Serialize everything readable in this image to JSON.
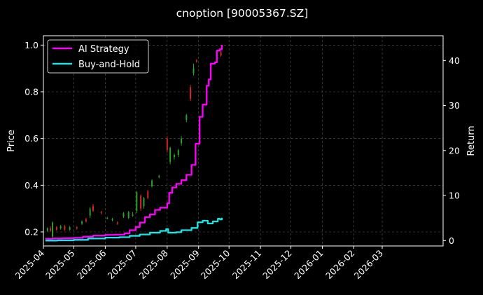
{
  "chart_data": {
    "type": "line",
    "title": "cnoption [90005367.SZ]",
    "left_axis": {
      "label": "Price",
      "range": [
        0.14,
        1.04
      ],
      "ticks": [
        "0.2",
        "0.4",
        "0.6",
        "0.8",
        "1.0"
      ]
    },
    "right_axis": {
      "label": "Return",
      "range": [
        -1.2,
        45.5
      ],
      "ticks": [
        "0",
        "10",
        "20",
        "30",
        "40"
      ]
    },
    "x_axis": {
      "label": "",
      "range": [
        "2025-04-01",
        "2026-04-30"
      ],
      "ticks": [
        "2025-04",
        "2025-05",
        "2025-06",
        "2025-07",
        "2025-08",
        "2025-09",
        "2025-10",
        "2025-11",
        "2025-12",
        "2026-01",
        "2026-02",
        "2026-03"
      ]
    },
    "grid": true,
    "legend_position": "top-left",
    "colors": {
      "ai": "#ff00ff",
      "bh": "#19e6e6",
      "up": "#2ca02c",
      "down": "#d62728",
      "background": "#000000",
      "grid": "#5a5a5a"
    },
    "series": [
      {
        "name": "AI Strategy",
        "axis": "right",
        "points": [
          [
            "2025-04-03",
            0.4
          ],
          [
            "2025-04-10",
            0.45
          ],
          [
            "2025-04-20",
            0.5
          ],
          [
            "2025-05-01",
            0.6
          ],
          [
            "2025-05-10",
            0.85
          ],
          [
            "2025-05-20",
            1.1
          ],
          [
            "2025-06-01",
            1.25
          ],
          [
            "2025-06-10",
            1.3
          ],
          [
            "2025-06-20",
            1.6
          ],
          [
            "2025-06-25",
            2.3
          ],
          [
            "2025-07-01",
            3.0
          ],
          [
            "2025-07-05",
            4.0
          ],
          [
            "2025-07-10",
            5.2
          ],
          [
            "2025-07-15",
            5.8
          ],
          [
            "2025-07-20",
            6.8
          ],
          [
            "2025-07-25",
            7.3
          ],
          [
            "2025-08-01",
            8.3
          ],
          [
            "2025-08-03",
            10.6
          ],
          [
            "2025-08-06",
            11.8
          ],
          [
            "2025-08-10",
            12.6
          ],
          [
            "2025-08-15",
            13.4
          ],
          [
            "2025-08-20",
            14.6
          ],
          [
            "2025-08-25",
            16.8
          ],
          [
            "2025-08-29",
            21.5
          ],
          [
            "2025-09-02",
            27.5
          ],
          [
            "2025-09-05",
            30.2
          ],
          [
            "2025-09-09",
            34.4
          ],
          [
            "2025-09-11",
            35.8
          ],
          [
            "2025-09-13",
            39.3
          ],
          [
            "2025-09-17",
            39.6
          ],
          [
            "2025-09-19",
            42.2
          ],
          [
            "2025-09-22",
            42.5
          ],
          [
            "2025-09-24",
            43.5
          ]
        ]
      },
      {
        "name": "Buy-and-Hold",
        "axis": "right",
        "points": [
          [
            "2025-04-03",
            0.0
          ],
          [
            "2025-04-15",
            0.05
          ],
          [
            "2025-05-01",
            0.15
          ],
          [
            "2025-05-15",
            0.45
          ],
          [
            "2025-06-01",
            0.65
          ],
          [
            "2025-06-15",
            0.75
          ],
          [
            "2025-06-25",
            1.05
          ],
          [
            "2025-07-05",
            1.35
          ],
          [
            "2025-07-15",
            1.75
          ],
          [
            "2025-07-25",
            2.15
          ],
          [
            "2025-07-31",
            2.55
          ],
          [
            "2025-08-02",
            1.75
          ],
          [
            "2025-08-10",
            1.85
          ],
          [
            "2025-08-15",
            2.3
          ],
          [
            "2025-08-25",
            2.8
          ],
          [
            "2025-08-31",
            4.05
          ],
          [
            "2025-09-05",
            4.4
          ],
          [
            "2025-09-10",
            3.8
          ],
          [
            "2025-09-15",
            4.25
          ],
          [
            "2025-09-20",
            4.85
          ],
          [
            "2025-09-22",
            4.7
          ],
          [
            "2025-09-24",
            5.05
          ]
        ]
      }
    ],
    "candles": [
      [
        "2025-04-05",
        0.205,
        0.215,
        0.2,
        0.22
      ],
      [
        "2025-04-08",
        0.215,
        0.205,
        0.2,
        0.225
      ],
      [
        "2025-04-10",
        0.18,
        0.24,
        0.17,
        0.245
      ],
      [
        "2025-04-14",
        0.22,
        0.21,
        0.205,
        0.225
      ],
      [
        "2025-04-18",
        0.215,
        0.225,
        0.21,
        0.23
      ],
      [
        "2025-04-22",
        0.225,
        0.21,
        0.205,
        0.23
      ],
      [
        "2025-04-27",
        0.21,
        0.22,
        0.205,
        0.225
      ],
      [
        "2025-05-04",
        0.22,
        0.215,
        0.21,
        0.225
      ],
      [
        "2025-05-09",
        0.235,
        0.245,
        0.23,
        0.25
      ],
      [
        "2025-05-13",
        0.255,
        0.245,
        0.24,
        0.26
      ],
      [
        "2025-05-17",
        0.27,
        0.3,
        0.26,
        0.305
      ],
      [
        "2025-05-20",
        0.31,
        0.29,
        0.285,
        0.32
      ],
      [
        "2025-05-28",
        0.285,
        0.28,
        0.275,
        0.29
      ],
      [
        "2025-06-03",
        0.26,
        0.26,
        0.255,
        0.265
      ],
      [
        "2025-06-08",
        0.25,
        0.255,
        0.245,
        0.26
      ],
      [
        "2025-06-13",
        0.24,
        0.235,
        0.23,
        0.245
      ],
      [
        "2025-06-19",
        0.265,
        0.28,
        0.26,
        0.285
      ],
      [
        "2025-06-24",
        0.26,
        0.285,
        0.255,
        0.29
      ],
      [
        "2025-06-28",
        0.27,
        0.275,
        0.265,
        0.285
      ],
      [
        "2025-07-02",
        0.29,
        0.37,
        0.28,
        0.375
      ],
      [
        "2025-07-06",
        0.355,
        0.3,
        0.29,
        0.36
      ],
      [
        "2025-07-09",
        0.31,
        0.345,
        0.3,
        0.35
      ],
      [
        "2025-07-13",
        0.375,
        0.345,
        0.34,
        0.38
      ],
      [
        "2025-07-17",
        0.395,
        0.42,
        0.39,
        0.425
      ],
      [
        "2025-07-24",
        0.435,
        0.44,
        0.43,
        0.445
      ],
      [
        "2025-08-01",
        0.6,
        0.55,
        0.54,
        0.61
      ],
      [
        "2025-08-04",
        0.5,
        0.56,
        0.49,
        0.565
      ],
      [
        "2025-08-08",
        0.52,
        0.53,
        0.51,
        0.535
      ],
      [
        "2025-08-12",
        0.53,
        0.55,
        0.52,
        0.555
      ],
      [
        "2025-08-15",
        0.58,
        0.6,
        0.57,
        0.61
      ],
      [
        "2025-08-20",
        0.68,
        0.7,
        0.67,
        0.705
      ],
      [
        "2025-08-24",
        0.82,
        0.77,
        0.76,
        0.83
      ],
      [
        "2025-08-27",
        0.88,
        0.9,
        0.87,
        0.92
      ],
      [
        "2025-08-30",
        0.935,
        0.93,
        0.925,
        0.94
      ],
      [
        "2025-09-23",
        0.97,
        0.955,
        0.95,
        0.975
      ]
    ]
  }
}
